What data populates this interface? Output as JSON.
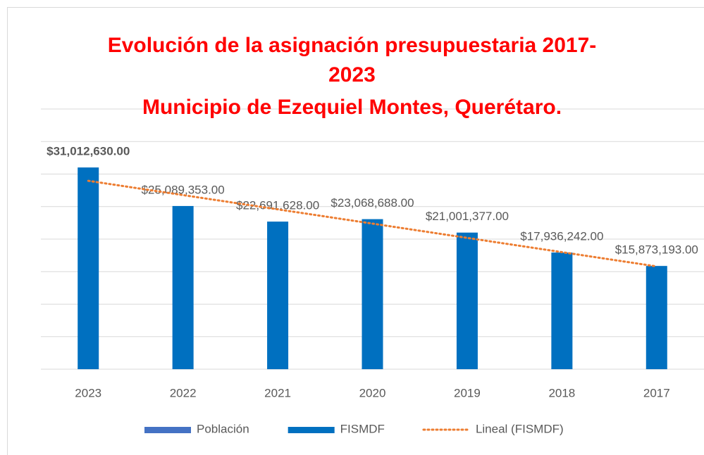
{
  "chart_data": {
    "type": "bar",
    "title": "Evolución de la asignación presupuestaria 2017-2023",
    "subtitle": "Municipio de Ezequiel Montes, Querétaro.",
    "categories": [
      "2023",
      "2022",
      "2021",
      "2020",
      "2019",
      "2018",
      "2017"
    ],
    "series": [
      {
        "name": "Población",
        "color": "#4472c4",
        "values": [
          null,
          null,
          null,
          null,
          null,
          null,
          null
        ]
      },
      {
        "name": "FISMDF",
        "color": "#0070c0",
        "values": [
          31012630,
          25089353,
          22691628,
          23068688,
          21001377,
          17936242,
          15873193
        ],
        "value_labels": [
          "$31,012,630.00",
          "$25,089,353.00",
          "$22,691,628.00",
          "$23,068,688.00",
          "$21,001,377.00",
          "$17,936,242.00",
          "$15,873,193.00"
        ]
      }
    ],
    "trendline": {
      "name": "Lineal (FISMDF)",
      "color": "#ed7d31",
      "series": 1
    },
    "ylim": [
      0,
      40000000
    ],
    "yticks": [
      0,
      5000000,
      10000000,
      15000000,
      20000000,
      25000000,
      30000000,
      35000000,
      40000000
    ],
    "grid": true
  }
}
